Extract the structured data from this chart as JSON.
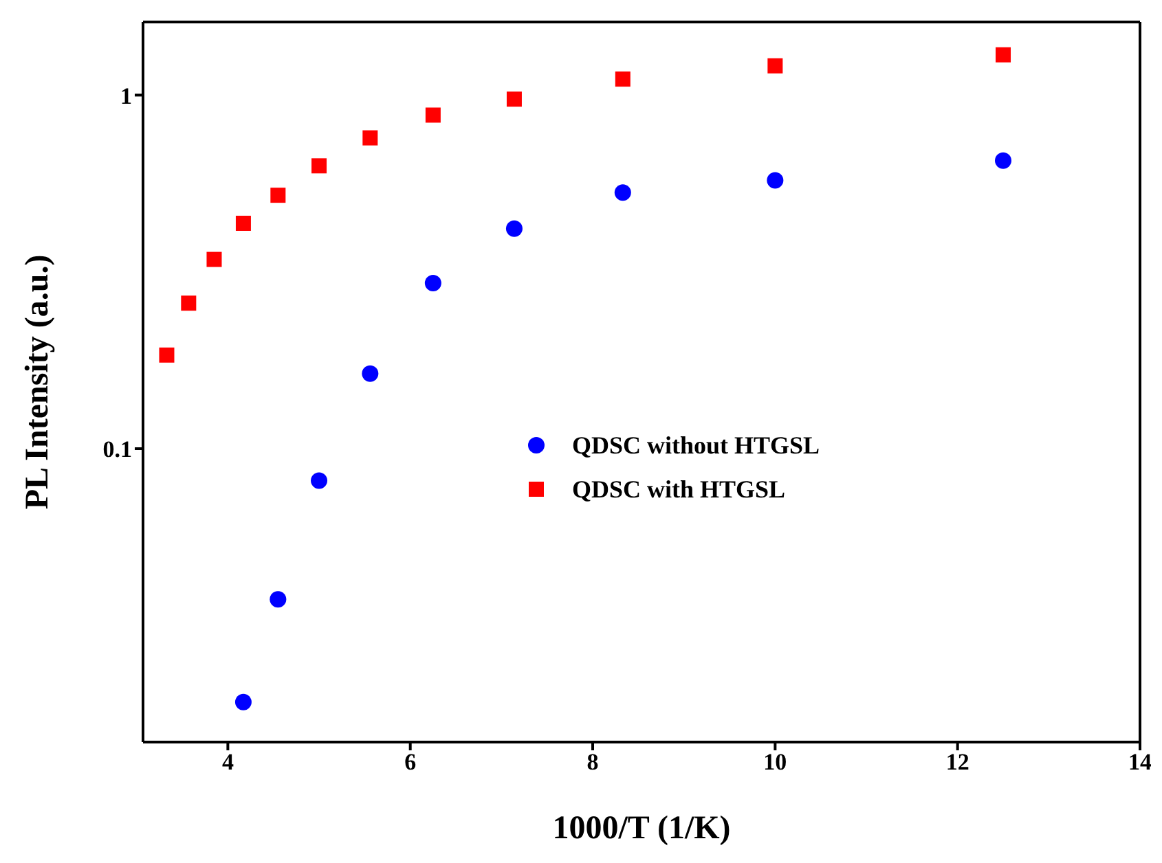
{
  "chart_data": {
    "type": "scatter",
    "xlabel": "1000/T (1/K)",
    "ylabel": "PL Intensity (a.u.)",
    "log": "y",
    "xlim": [
      3.07,
      14
    ],
    "xticks": [
      4,
      6,
      8,
      10,
      12,
      14
    ],
    "ylim": [
      0.0148,
      1.61
    ],
    "yticks": [
      0.1,
      1
    ],
    "grid": false,
    "legend": "center",
    "series": [
      {
        "name": "QDSC without HTGSL",
        "color": "#0000ff",
        "marker": "circle",
        "x": [
          4.17,
          4.55,
          5,
          5.56,
          6.25,
          7.14,
          8.33,
          10,
          12.5
        ],
        "values": [
          0.0192,
          0.0375,
          0.0812,
          0.163,
          0.294,
          0.419,
          0.53,
          0.574,
          0.653
        ]
      },
      {
        "name": "QDSC with HTGSL",
        "color": "#ff0000",
        "marker": "square",
        "x": [
          3.33,
          3.57,
          3.85,
          4.17,
          4.55,
          5,
          5.56,
          6.25,
          7.14,
          8.33,
          10,
          12.5
        ],
        "values": [
          0.184,
          0.258,
          0.343,
          0.434,
          0.521,
          0.631,
          0.757,
          0.878,
          0.974,
          1.11,
          1.21,
          1.3
        ]
      }
    ]
  }
}
